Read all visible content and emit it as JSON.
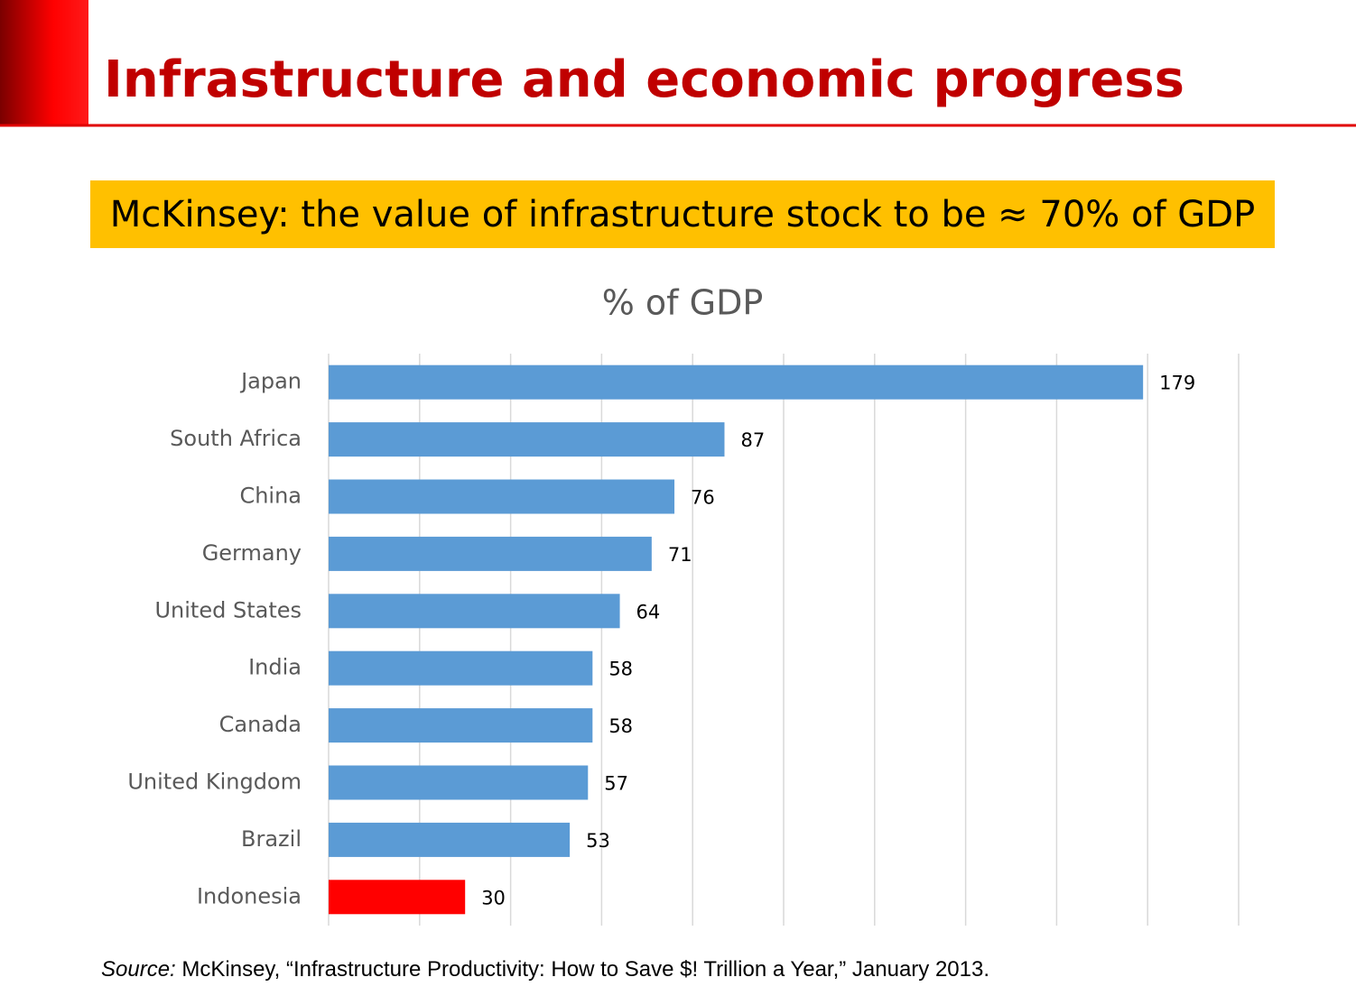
{
  "slide": {
    "title": "Infrastructure and economic progress",
    "banner": "McKinsey: the value of infrastructure stock to be ≈ 70% of GDP",
    "source_label": "Source:",
    "source_text": " McKinsey, “Infrastructure Productivity: How to Save $! Trillion a Year,” January 2013."
  },
  "chart_data": {
    "type": "bar",
    "orientation": "horizontal",
    "title": "% of GDP",
    "categories": [
      "Japan",
      "South Africa",
      "China",
      "Germany",
      "United States",
      "India",
      "Canada",
      "United Kingdom",
      "Brazil",
      "Indonesia"
    ],
    "values": [
      179,
      87,
      76,
      71,
      64,
      58,
      58,
      57,
      53,
      30
    ],
    "colors": [
      "#5b9bd5",
      "#5b9bd5",
      "#5b9bd5",
      "#5b9bd5",
      "#5b9bd5",
      "#5b9bd5",
      "#5b9bd5",
      "#5b9bd5",
      "#5b9bd5",
      "#ff0000"
    ],
    "xlim": [
      0,
      200
    ],
    "xticks": [
      0,
      20,
      40,
      60,
      80,
      100,
      120,
      140,
      160,
      180,
      200
    ],
    "grid": true
  }
}
